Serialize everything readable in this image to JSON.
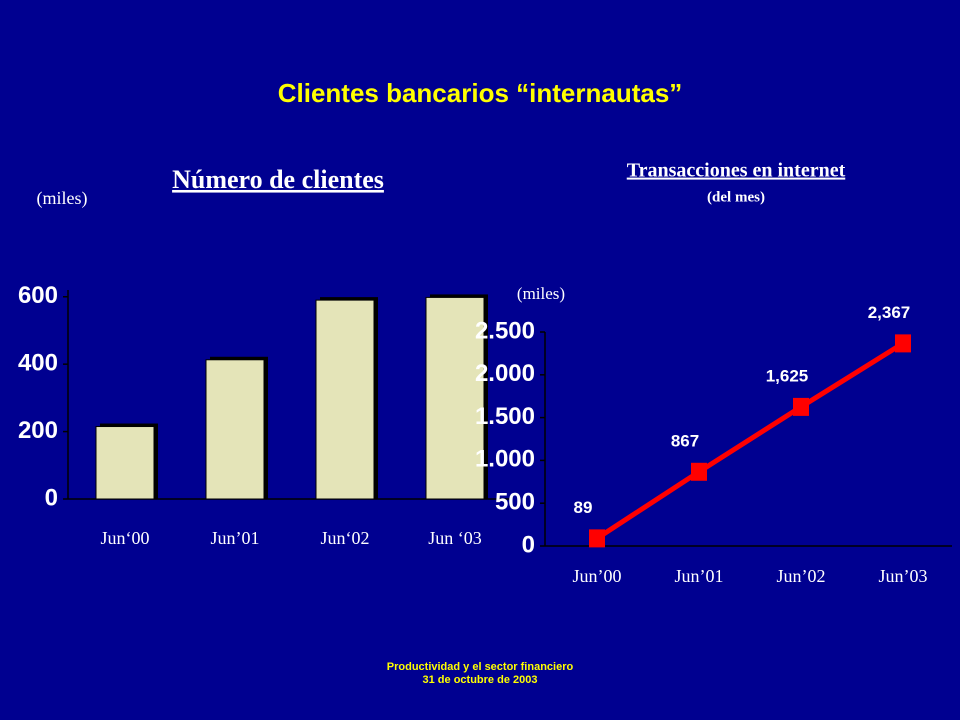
{
  "title": "Clientes bancarios “internautas”",
  "footer": [
    "Productividad y el sector financiero",
    "31 de octubre de 2003"
  ],
  "chart_data": [
    {
      "type": "bar",
      "title": "Número de clientes",
      "ylabel": "(miles)",
      "categories": [
        "Jun‘00",
        "Jun’01",
        "Jun‘02",
        "Jun ‘03"
      ],
      "values": [
        215,
        413,
        590,
        598
      ],
      "color": "#e4e4b8",
      "ylim": [
        0,
        620
      ],
      "yticks": [
        0,
        200,
        400,
        600
      ]
    },
    {
      "type": "line",
      "title": "Transacciones en internet",
      "subtitle": "(del mes)",
      "ylabel": "(miles)",
      "categories": [
        "Jun’00",
        "Jun’01",
        "Jun’02",
        "Jun’03"
      ],
      "values": [
        89,
        867,
        1625,
        2367
      ],
      "value_labels": [
        "89",
        "867",
        "1,625",
        "2,367"
      ],
      "color": "#ff0000",
      "ylim": [
        0,
        2500
      ],
      "yticks": [
        0,
        500,
        {
          "value": 1000,
          "label": "1.000"
        },
        {
          "value": 1500,
          "label": "1.500"
        },
        {
          "value": 2000,
          "label": "2.000"
        },
        {
          "value": 2500,
          "label": "2.500"
        }
      ]
    }
  ]
}
